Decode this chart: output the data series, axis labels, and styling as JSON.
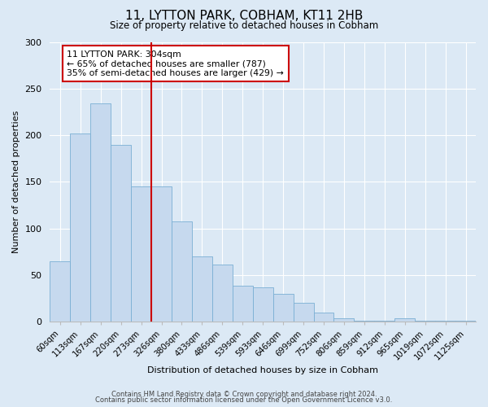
{
  "title": "11, LYTTON PARK, COBHAM, KT11 2HB",
  "subtitle": "Size of property relative to detached houses in Cobham",
  "xlabel": "Distribution of detached houses by size in Cobham",
  "ylabel": "Number of detached properties",
  "bar_labels": [
    "60sqm",
    "113sqm",
    "167sqm",
    "220sqm",
    "273sqm",
    "326sqm",
    "380sqm",
    "433sqm",
    "486sqm",
    "539sqm",
    "593sqm",
    "646sqm",
    "699sqm",
    "752sqm",
    "806sqm",
    "859sqm",
    "912sqm",
    "965sqm",
    "1019sqm",
    "1072sqm",
    "1125sqm"
  ],
  "bar_values": [
    65,
    202,
    234,
    190,
    145,
    145,
    108,
    70,
    61,
    39,
    37,
    30,
    20,
    10,
    4,
    1,
    1,
    4,
    1,
    1,
    1
  ],
  "bar_color": "#c6d9ee",
  "bar_edge_color": "#7aafd4",
  "vline_x": 4.5,
  "vline_color": "#cc0000",
  "annotation_text": "11 LYTTON PARK: 304sqm\n← 65% of detached houses are smaller (787)\n35% of semi-detached houses are larger (429) →",
  "annotation_box_color": "#ffffff",
  "annotation_box_edge_color": "#cc0000",
  "ylim": [
    0,
    300
  ],
  "yticks": [
    0,
    50,
    100,
    150,
    200,
    250,
    300
  ],
  "footer1": "Contains HM Land Registry data © Crown copyright and database right 2024.",
  "footer2": "Contains public sector information licensed under the Open Government Licence v3.0.",
  "bg_color": "#dce9f5",
  "plot_bg_color": "#dce9f5"
}
